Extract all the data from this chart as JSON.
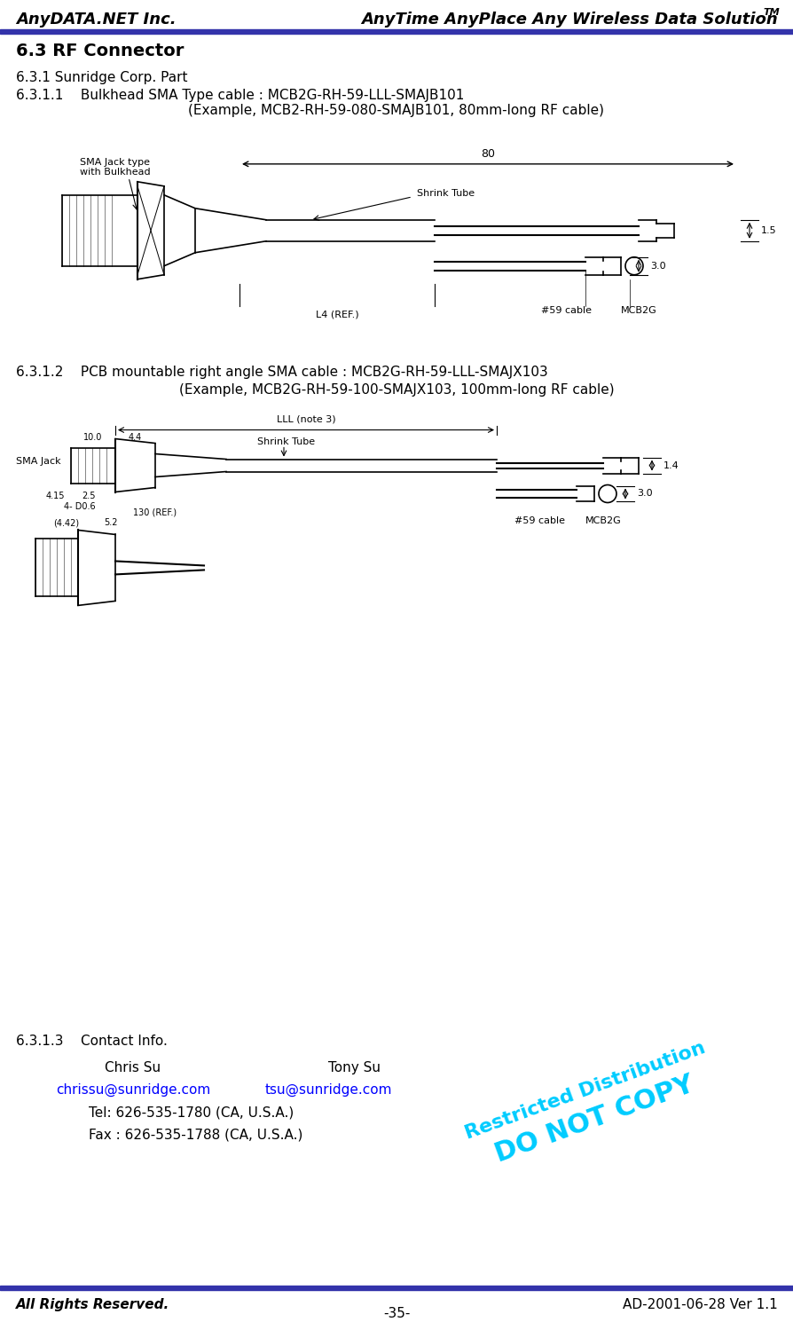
{
  "header_left": "AnyDATA.NET Inc.",
  "header_right": "AnyTime AnyPlace Any Wireless Data Solution",
  "header_right_tm": "TM",
  "header_line_color": "#3333aa",
  "footer_left": "All Rights Reserved.",
  "footer_right": "AD-2001-06-28 Ver 1.1",
  "footer_center": "-35-",
  "footer_line_color": "#3333aa",
  "section_title": "6.3 RF Connector",
  "sub_section_1": "6.3.1 Sunridge Corp. Part",
  "sub_section_1_1": "6.3.1.1    Bulkhead SMA Type cable : MCB2G-RH-59-LLL-SMAJB101",
  "sub_section_1_1_example": "(Example, MCB2-RH-59-080-SMAJB101, 80mm-long RF cable)",
  "sub_section_1_2": "6.3.1.2    PCB mountable right angle SMA cable : MCB2G-RH-59-LLL-SMAJX103",
  "sub_section_1_2_example": "(Example, MCB2G-RH-59-100-SMAJX103, 100mm-long RF cable)",
  "sub_section_1_3": "6.3.1.3    Contact Info.",
  "contact_1_name": "Chris Su",
  "contact_2_name": "Tony Su",
  "contact_1_email": "chrissu@sunridge.com",
  "contact_2_email": "tsu@sunridge.com",
  "contact_tel": "Tel: 626-535-1780 (CA, U.S.A.)",
  "contact_fax": "Fax : 626-535-1788 (CA, U.S.A.)",
  "watermark_line1": "Restricted Distribution",
  "watermark_line2": "DO NOT COPY",
  "watermark_color": "#00ccff",
  "bg_color": "#ffffff",
  "text_color": "#000000"
}
